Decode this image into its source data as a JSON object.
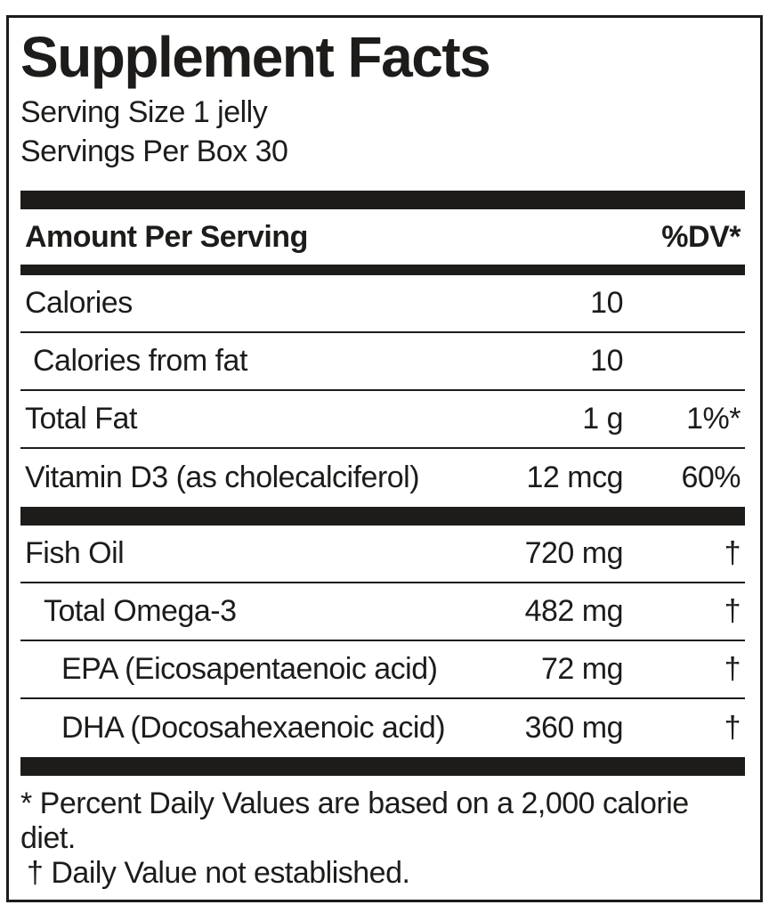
{
  "label": {
    "title": "Supplement Facts",
    "serving_size": "Serving Size 1 jelly",
    "servings_per_box": "Servings Per Box 30",
    "header": {
      "amount_per_serving": "Amount Per Serving",
      "dv": "%DV*"
    },
    "rows": [
      {
        "name": "Calories",
        "amount": "10",
        "dv": ""
      },
      {
        "name": "Calories from fat",
        "amount": "10",
        "dv": ""
      },
      {
        "name": "Total Fat",
        "amount": "1 g",
        "dv": "1%*"
      },
      {
        "name": "Vitamin D3 (as cholecalciferol)",
        "amount": "12 mcg",
        "dv": "60%"
      },
      {
        "name": "Fish Oil",
        "amount": "720 mg",
        "dv": "†"
      },
      {
        "name": "Total Omega-3",
        "amount": "482 mg",
        "dv": "†"
      },
      {
        "name": "EPA (Eicosapentaenoic acid)",
        "amount": "72 mg",
        "dv": "†"
      },
      {
        "name": "DHA (Docosahexaenoic acid)",
        "amount": "360 mg",
        "dv": "†"
      }
    ],
    "footnotes": {
      "percent_dv": "* Percent Daily Values are based on a 2,000 calorie diet.",
      "dagger": "† Daily Value not established."
    },
    "colors": {
      "ink": "#1d1c1a",
      "background": "#ffffff"
    }
  }
}
